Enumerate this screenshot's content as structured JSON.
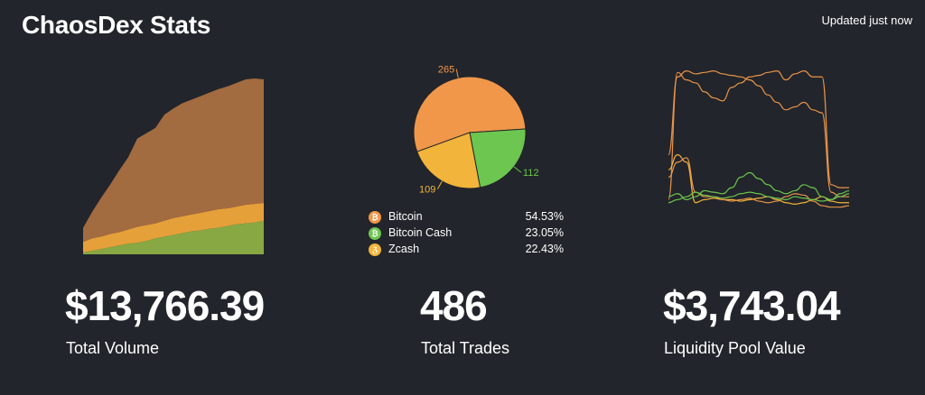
{
  "header": {
    "title": "ChaosDex Stats",
    "updated": "Updated just now"
  },
  "stats": [
    {
      "value": "$13,766.39",
      "label": "Total Volume"
    },
    {
      "value": "486",
      "label": "Total Trades"
    },
    {
      "value": "$3,743.04",
      "label": "Liquidity Pool Value"
    }
  ],
  "colors": {
    "bitcoin": "#f0974a",
    "bitcoin_cash": "#6cc64f",
    "zcash": "#f2b43a",
    "background": "#22252b"
  },
  "legend": [
    {
      "name": "Bitcoin",
      "pct": "54.53%",
      "color": "#f0974a",
      "icon": "bitcoin-icon",
      "glyph": "₿"
    },
    {
      "name": "Bitcoin Cash",
      "pct": "23.05%",
      "color": "#6cc64f",
      "icon": "bitcoin-cash-icon",
      "glyph": "₿"
    },
    {
      "name": "Zcash",
      "pct": "22.43%",
      "color": "#f2b43a",
      "icon": "zcash-icon",
      "glyph": "ℨ"
    }
  ],
  "chart_data": [
    {
      "type": "area",
      "stacked": true,
      "x": [
        0,
        1,
        2,
        3,
        4,
        5,
        6,
        7,
        8,
        9,
        10,
        11,
        12,
        13,
        14,
        15,
        16,
        17,
        18,
        19,
        20
      ],
      "series": [
        {
          "color": "#88a843",
          "values": [
            2,
            4,
            6,
            8,
            10,
            12,
            13,
            15,
            18,
            20,
            22,
            24,
            26,
            27,
            29,
            30,
            32,
            34,
            35,
            36,
            38
          ]
        },
        {
          "color": "#e6a03a",
          "values": [
            12,
            14,
            14,
            15,
            15,
            16,
            18,
            18,
            17,
            18,
            19,
            19,
            19,
            20,
            20,
            21,
            20,
            20,
            21,
            21,
            20
          ]
        },
        {
          "color": "#a36b40",
          "values": [
            16,
            30,
            44,
            56,
            70,
            82,
            100,
            104,
            108,
            120,
            124,
            128,
            130,
            132,
            134,
            136,
            138,
            140,
            142,
            142,
            140
          ]
        }
      ],
      "ylim": [
        0,
        200
      ]
    },
    {
      "type": "pie",
      "categories": [
        "Bitcoin",
        "Bitcoin Cash",
        "Zcash"
      ],
      "values": [
        265,
        112,
        109
      ],
      "colors": [
        "#f0974a",
        "#6cc64f",
        "#f2b43a"
      ],
      "labels": [
        "265",
        "112",
        "109"
      ]
    },
    {
      "type": "line",
      "x": [
        0,
        1,
        2,
        3,
        4,
        5,
        6,
        7,
        8,
        9,
        10,
        11,
        12,
        13,
        14,
        15,
        16,
        17,
        18,
        19,
        20
      ],
      "series": [
        {
          "color": "#e8944a",
          "values": [
            10,
            95,
            90,
            88,
            82,
            78,
            76,
            85,
            88,
            92,
            93,
            95,
            96,
            90,
            94,
            96,
            92,
            92,
            20,
            18,
            18
          ]
        },
        {
          "color": "#e8944a",
          "values": [
            40,
            92,
            96,
            94,
            95,
            96,
            94,
            93,
            92,
            90,
            86,
            80,
            75,
            70,
            72,
            75,
            70,
            68,
            15,
            12,
            12
          ]
        },
        {
          "color": "#f2b43a",
          "values": [
            30,
            40,
            35,
            8,
            10,
            11,
            10,
            10,
            9,
            10,
            11,
            12,
            10,
            8,
            7,
            8,
            10,
            12,
            9,
            8,
            8
          ]
        },
        {
          "color": "#e8944a",
          "values": [
            25,
            35,
            38,
            15,
            12,
            12,
            10,
            9,
            10,
            11,
            9,
            8,
            9,
            12,
            14,
            13,
            9,
            6,
            5,
            5,
            6
          ]
        },
        {
          "color": "#6cc64f",
          "values": [
            12,
            14,
            10,
            12,
            16,
            15,
            14,
            18,
            25,
            28,
            24,
            20,
            16,
            14,
            16,
            20,
            18,
            12,
            10,
            14,
            16
          ]
        },
        {
          "color": "#6cc64f",
          "values": [
            8,
            10,
            12,
            15,
            13,
            12,
            11,
            12,
            14,
            15,
            14,
            12,
            11,
            10,
            12,
            11,
            10,
            9,
            10,
            12,
            14
          ]
        }
      ],
      "ylim": [
        0,
        100
      ]
    }
  ]
}
